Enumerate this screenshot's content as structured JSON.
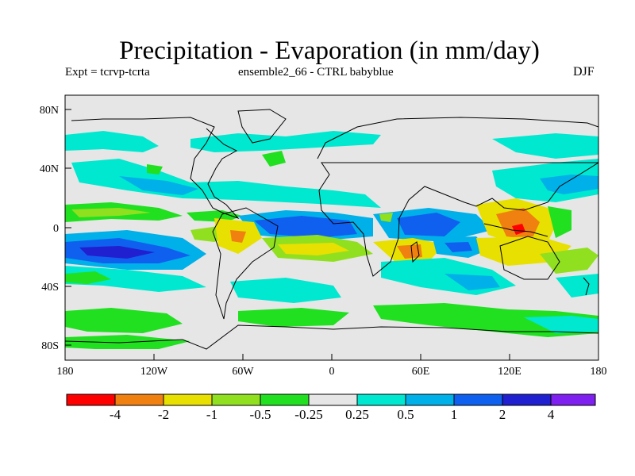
{
  "title": "Precipitation - Evaporation (in mm/day)",
  "subtitle_left": "Expt = tcrvp-tcrta",
  "subtitle_center": "ensemble2_66 - CTRL babyblue",
  "subtitle_right": "DJF",
  "axes": {
    "x_ticks": [
      "180",
      "120W",
      "60W",
      "0",
      "60E",
      "120E",
      "180"
    ],
    "y_ticks": [
      "80N",
      "40N",
      "0",
      "40S",
      "80S"
    ]
  },
  "colors": {
    "background": "#e6e6e6",
    "land_outline": "#000000",
    "neg_strong": "#ff0000",
    "neg_2": "#f08010",
    "neg_1": "#e8e000",
    "neg_05": "#90e020",
    "neg_025": "#20e020",
    "neutral": "#e6e6e6",
    "pos_025": "#00e8d0",
    "pos_05": "#00b0e8",
    "pos_1": "#1060f0",
    "pos_2": "#2020d0",
    "pos_4": "#8020f0"
  },
  "colorbar": {
    "colors": [
      "#ff0000",
      "#f08010",
      "#e8e000",
      "#90e020",
      "#20e020",
      "#e6e6e6",
      "#00e8d0",
      "#00b0e8",
      "#1060f0",
      "#2020d0",
      "#8020f0"
    ],
    "labels": [
      "-4",
      "-2",
      "-1",
      "-0.5",
      "-0.25",
      "0.25",
      "0.5",
      "1",
      "2",
      "4"
    ]
  }
}
